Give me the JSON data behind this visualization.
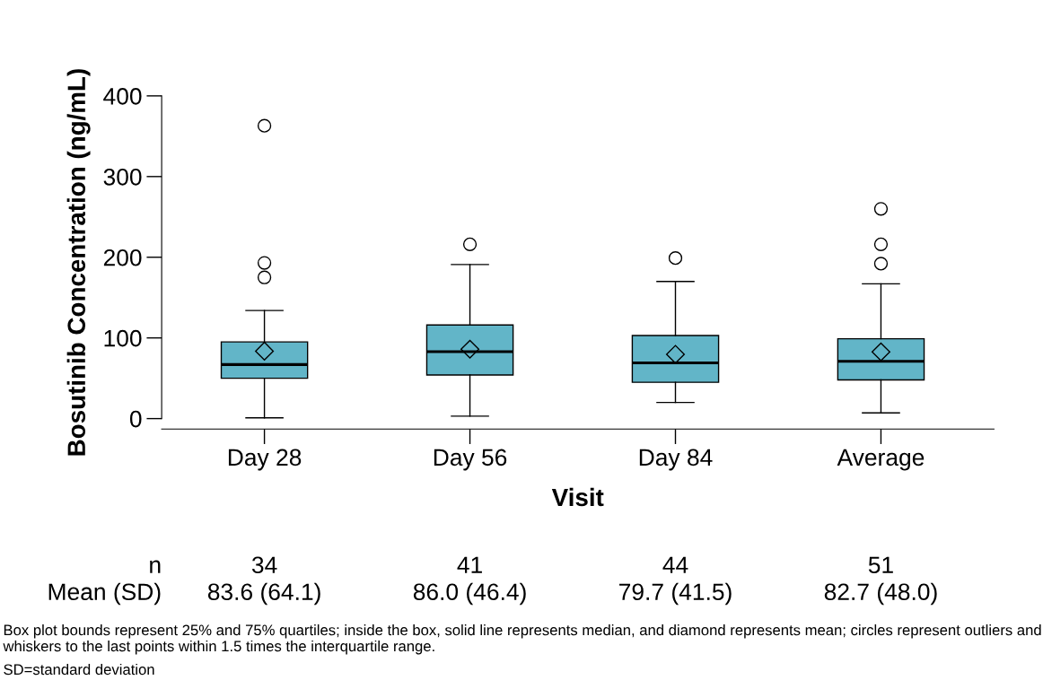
{
  "chart_data": {
    "type": "box",
    "xlabel": "Visit",
    "ylabel": "Bosutinib Concentration (ng/mL)",
    "categories": [
      "Day 28",
      "Day 56",
      "Day 84",
      "Average"
    ],
    "color": "#62b5c8",
    "boxes": [
      {
        "low": 1,
        "q1": 50,
        "median": 67,
        "q3": 95,
        "high": 134,
        "mean": 83.6,
        "outliers": [
          175,
          193,
          363
        ]
      },
      {
        "low": 3,
        "q1": 54,
        "median": 83,
        "q3": 116,
        "high": 191,
        "mean": 86.0,
        "outliers": [
          216
        ]
      },
      {
        "low": 20,
        "q1": 45,
        "median": 69,
        "q3": 103,
        "high": 170,
        "mean": 79.7,
        "outliers": [
          199
        ]
      },
      {
        "low": 7,
        "q1": 48,
        "median": 71,
        "q3": 99,
        "high": 167,
        "mean": 82.7,
        "outliers": [
          192,
          216,
          260
        ]
      }
    ],
    "ylim": [
      -13,
      400
    ],
    "yticks": [
      0,
      100,
      200,
      300,
      400
    ],
    "grid": false,
    "legend": false,
    "annotations": [
      "n",
      "Mean (SD)",
      "34",
      "83.6 (64.1)",
      "41",
      "86.0 (46.4)",
      "44",
      "79.7 (41.5)",
      "51",
      "82.7 (48.0)",
      "Box plot bounds represent 25% and 75% quartiles; inside the box, solid line represents median, and diamond represents mean; circles represent outliers and whiskers to the last points within 1.5 times the interquartile range.",
      "SD=standard deviation"
    ]
  }
}
